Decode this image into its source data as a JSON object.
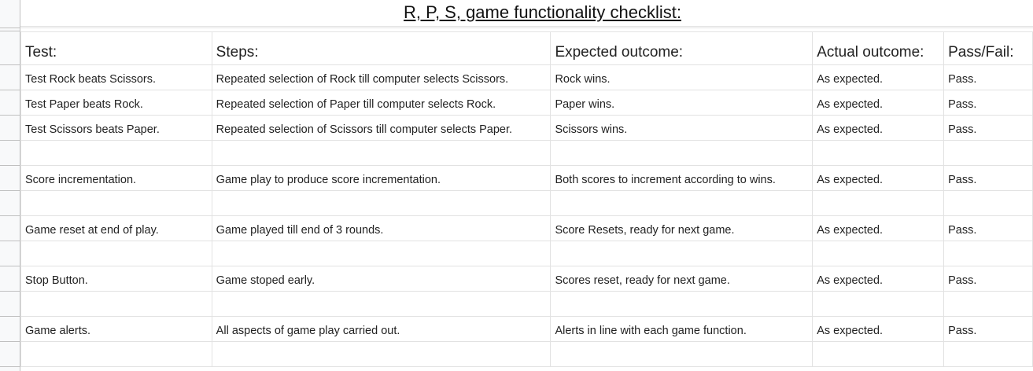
{
  "title": "R, P, S, game functionality checklist:",
  "headers": {
    "test": "Test:",
    "steps": "Steps:",
    "expected": "Expected outcome:",
    "actual": "Actual outcome:",
    "pass_fail": "Pass/Fail:"
  },
  "rows": [
    {
      "test": "Test Rock beats Scissors.",
      "steps": "Repeated selection of Rock till computer selects Scissors.",
      "expected": "Rock wins.",
      "actual": "As expected.",
      "pass_fail": "Pass."
    },
    {
      "test": "Test Paper beats Rock.",
      "steps": "Repeated selection of Paper till computer selects Rock.",
      "expected": "Paper wins.",
      "actual": "As expected.",
      "pass_fail": "Pass."
    },
    {
      "test": "Test Scissors beats Paper.",
      "steps": "Repeated selection of Scissors till computer selects Paper.",
      "expected": "Scissors wins.",
      "actual": "As expected.",
      "pass_fail": "Pass."
    },
    {
      "test": "Score incrementation.",
      "steps": "Game play to produce score incrementation.",
      "expected": "Both scores to increment according to wins.",
      "actual": "As expected.",
      "pass_fail": "Pass."
    },
    {
      "test": "Game reset at end of play.",
      "steps": "Game played till end of 3 rounds.",
      "expected": "Score Resets, ready for next game.",
      "actual": "As expected.",
      "pass_fail": "Pass."
    },
    {
      "test": "Stop Button.",
      "steps": "Game stoped early.",
      "expected": "Scores reset, ready for next game.",
      "actual": "As expected.",
      "pass_fail": "Pass."
    },
    {
      "test": "Game alerts.",
      "steps": "All aspects of game play carried out.",
      "expected": "Alerts in line with each game function.",
      "actual": "As expected.",
      "pass_fail": "Pass."
    }
  ]
}
